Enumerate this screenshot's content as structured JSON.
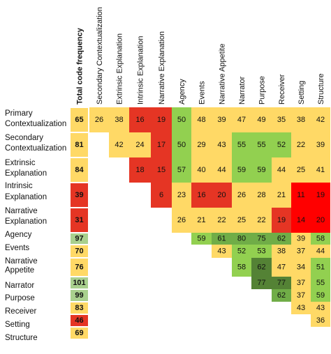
{
  "chart_data": {
    "type": "heatmap",
    "columns": [
      "Total code frequency",
      "Secondary Contextualization",
      "Extrinsic Explanation",
      "Intrinsic Explanation",
      "Narrative Explanation",
      "Agency",
      "Events",
      "Narrative Appetite",
      "Narrator",
      "Purpose",
      "Receiver",
      "Setting",
      "Structure"
    ],
    "rows": [
      {
        "label": [
          "Primary",
          "Contextualization"
        ],
        "values": [
          65,
          26,
          38,
          16,
          19,
          50,
          48,
          39,
          47,
          49,
          35,
          38,
          42
        ]
      },
      {
        "label": [
          "Secondary",
          "Contextualization"
        ],
        "values": [
          81,
          null,
          42,
          24,
          17,
          50,
          29,
          43,
          55,
          55,
          52,
          22,
          39
        ]
      },
      {
        "label": [
          "Extrinsic",
          "Explanation"
        ],
        "values": [
          84,
          null,
          null,
          18,
          15,
          57,
          40,
          44,
          59,
          59,
          44,
          25,
          41
        ]
      },
      {
        "label": [
          "Intrinsic",
          "Explanation"
        ],
        "values": [
          39,
          null,
          null,
          null,
          6,
          23,
          16,
          20,
          26,
          28,
          21,
          11,
          19
        ]
      },
      {
        "label": [
          "Narrative",
          "Explanation"
        ],
        "values": [
          31,
          null,
          null,
          null,
          null,
          26,
          21,
          22,
          25,
          22,
          19,
          14,
          20
        ]
      },
      {
        "label": [
          "Agency"
        ],
        "values": [
          97,
          null,
          null,
          null,
          null,
          null,
          59,
          61,
          80,
          75,
          62,
          39,
          58
        ]
      },
      {
        "label": [
          "Events"
        ],
        "values": [
          70,
          null,
          null,
          null,
          null,
          null,
          null,
          43,
          52,
          53,
          38,
          37,
          44
        ]
      },
      {
        "label": [
          "Narrative",
          "Appetite"
        ],
        "values": [
          76,
          null,
          null,
          null,
          null,
          null,
          null,
          null,
          58,
          62,
          47,
          34,
          51
        ]
      },
      {
        "label": [
          "Narrator"
        ],
        "values": [
          101,
          null,
          null,
          null,
          null,
          null,
          null,
          null,
          null,
          77,
          77,
          37,
          55
        ]
      },
      {
        "label": [
          "Purpose"
        ],
        "values": [
          99,
          null,
          null,
          null,
          null,
          null,
          null,
          null,
          null,
          null,
          62,
          37,
          59
        ]
      },
      {
        "label": [
          "Receiver"
        ],
        "values": [
          83,
          null,
          null,
          null,
          null,
          null,
          null,
          null,
          null,
          null,
          null,
          43,
          43
        ]
      },
      {
        "label": [
          "Setting"
        ],
        "values": [
          46,
          null,
          null,
          null,
          null,
          null,
          null,
          null,
          null,
          null,
          null,
          null,
          36
        ]
      },
      {
        "label": [
          "Structure"
        ],
        "values": [
          69,
          null,
          null,
          null,
          null,
          null,
          null,
          null,
          null,
          null,
          null,
          null,
          null
        ]
      }
    ],
    "colors": {
      "light_green": "#a9d08e",
      "green": "#92d050",
      "mid_green": "#70ad47",
      "dark_green": "#548235",
      "yellow": "#ffd966",
      "orange": "#f4b183",
      "red": "#e53524",
      "bright_red": "#ff0000"
    },
    "cell_colors": [
      [
        "yellow",
        "yellow",
        "yellow",
        "red",
        "red",
        "green",
        "yellow",
        "yellow",
        "yellow",
        "yellow",
        "yellow",
        "yellow",
        "yellow"
      ],
      [
        "yellow",
        null,
        "yellow",
        "yellow",
        "red",
        "green",
        "yellow",
        "yellow",
        "green",
        "green",
        "green",
        "yellow",
        "yellow"
      ],
      [
        "yellow",
        null,
        null,
        "red",
        "red",
        "green",
        "yellow",
        "yellow",
        "green",
        "green",
        "yellow",
        "yellow",
        "yellow"
      ],
      [
        "red",
        null,
        null,
        null,
        "red",
        "yellow",
        "red",
        "red",
        "yellow",
        "yellow",
        "yellow",
        "bright_red",
        "bright_red"
      ],
      [
        "red",
        null,
        null,
        null,
        null,
        "yellow",
        "yellow",
        "yellow",
        "yellow",
        "yellow",
        "red",
        "bright_red",
        "bright_red"
      ],
      [
        "light_green",
        null,
        null,
        null,
        null,
        null,
        "green",
        "mid_green",
        "mid_green",
        "mid_green",
        "mid_green",
        "yellow",
        "green"
      ],
      [
        "yellow",
        null,
        null,
        null,
        null,
        null,
        null,
        "yellow",
        "green",
        "green",
        "yellow",
        "yellow",
        "yellow"
      ],
      [
        "yellow",
        null,
        null,
        null,
        null,
        null,
        null,
        null,
        "green",
        "dark_green",
        "yellow",
        "yellow",
        "green"
      ],
      [
        "light_green",
        null,
        null,
        null,
        null,
        null,
        null,
        null,
        null,
        "dark_green",
        "dark_green",
        "yellow",
        "green"
      ],
      [
        "light_green",
        null,
        null,
        null,
        null,
        null,
        null,
        null,
        null,
        null,
        "mid_green",
        "yellow",
        "green"
      ],
      [
        "yellow",
        null,
        null,
        null,
        null,
        null,
        null,
        null,
        null,
        null,
        null,
        "yellow",
        "yellow"
      ],
      [
        "red",
        null,
        null,
        null,
        null,
        null,
        null,
        null,
        null,
        null,
        null,
        null,
        "yellow"
      ],
      [
        "yellow",
        null,
        null,
        null,
        null,
        null,
        null,
        null,
        null,
        null,
        null,
        null,
        null
      ]
    ]
  }
}
